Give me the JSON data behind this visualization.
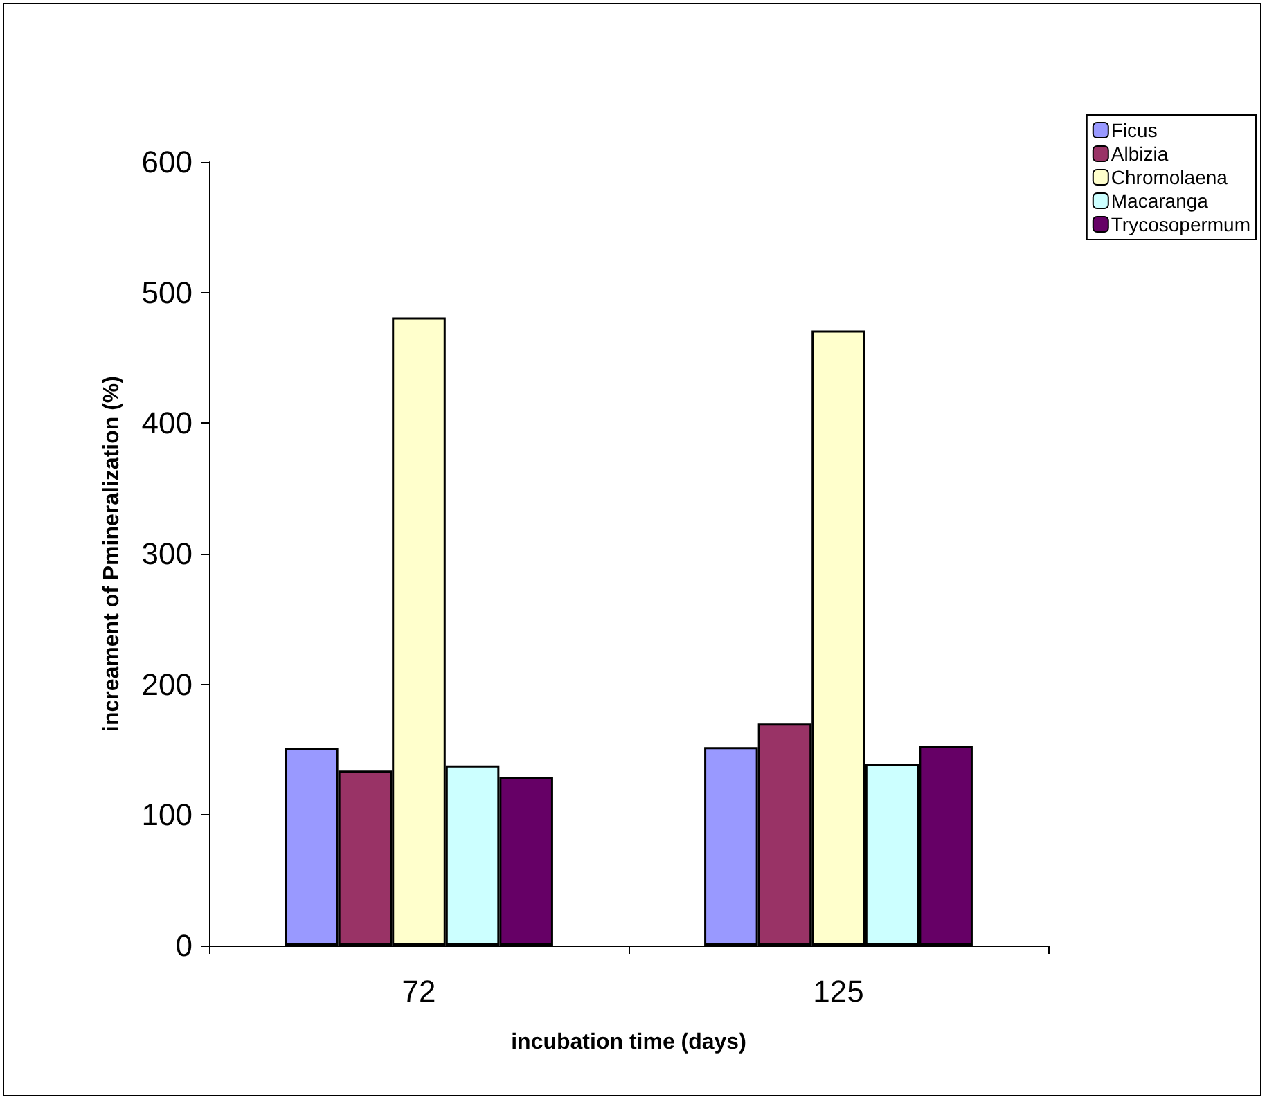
{
  "chart_data": {
    "type": "bar",
    "xlabel": "incubation time (days)",
    "ylabel": "increament of Pmineralization (%)",
    "categories": [
      "72",
      "125"
    ],
    "series": [
      {
        "name": "Ficus",
        "color": "#9999ff",
        "values": [
          151,
          152
        ]
      },
      {
        "name": "Albizia",
        "color": "#993366",
        "values": [
          134,
          170
        ]
      },
      {
        "name": "Chromolaena",
        "color": "#ffffcc",
        "values": [
          481,
          471
        ]
      },
      {
        "name": "Macaranga",
        "color": "#ccffff",
        "values": [
          138,
          139
        ]
      },
      {
        "name": "Trycosopermum",
        "color": "#660066",
        "values": [
          129,
          153
        ]
      }
    ],
    "ylim": [
      0,
      600
    ],
    "yticks": [
      0,
      100,
      200,
      300,
      400,
      500,
      600
    ],
    "grid": false,
    "legend": "top right"
  }
}
